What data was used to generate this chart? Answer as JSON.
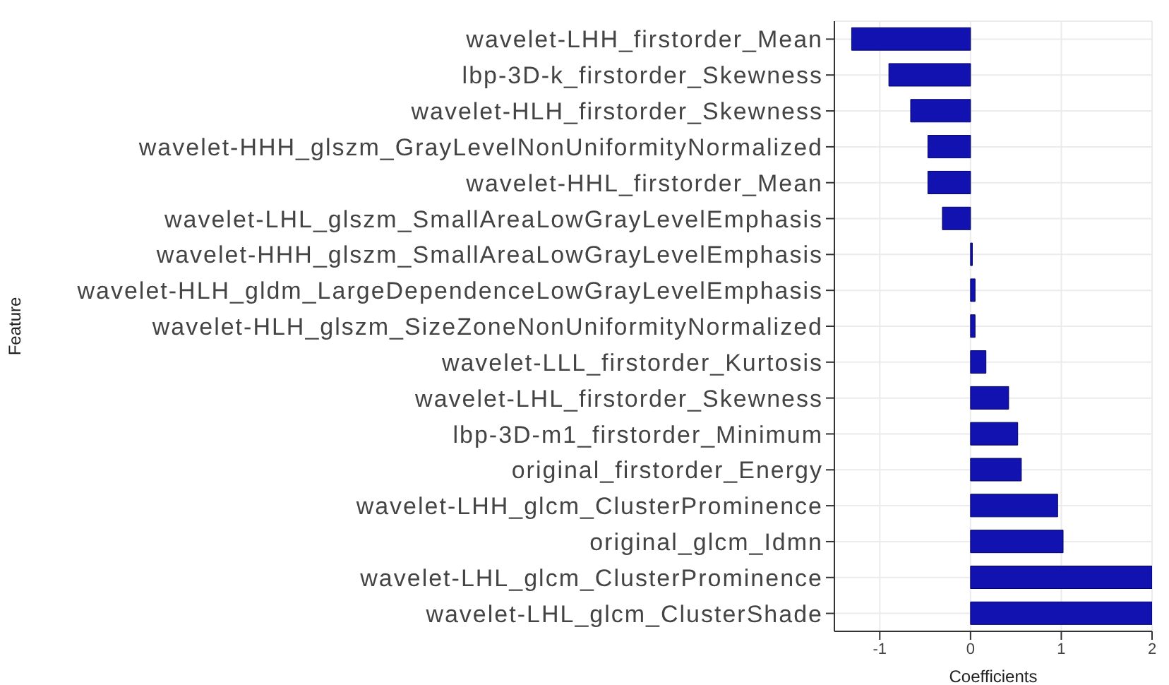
{
  "chart_data": {
    "type": "bar",
    "orientation": "horizontal",
    "xlabel": "Coefficients",
    "ylabel": "Feature",
    "categories": [
      "wavelet-LHH_firstorder_Mean",
      "lbp-3D-k_firstorder_Skewness",
      "wavelet-HLH_firstorder_Skewness",
      "wavelet-HHH_glszm_GrayLevelNonUniformityNormalized",
      "wavelet-HHL_firstorder_Mean",
      "wavelet-LHL_glszm_SmallAreaLowGrayLevelEmphasis",
      "wavelet-HHH_glszm_SmallAreaLowGrayLevelEmphasis",
      "wavelet-HLH_gldm_LargeDependenceLowGrayLevelEmphasis",
      "wavelet-HLH_glszm_SizeZoneNonUniformityNormalized",
      "wavelet-LLL_firstorder_Kurtosis",
      "wavelet-LHL_firstorder_Skewness",
      "lbp-3D-m1_firstorder_Minimum",
      "original_firstorder_Energy",
      "wavelet-LHH_glcm_ClusterProminence",
      "original_glcm_Idmn",
      "wavelet-LHL_glcm_ClusterProminence",
      "wavelet-LHL_glcm_ClusterShade"
    ],
    "values": [
      -1.31,
      -0.9,
      -0.66,
      -0.47,
      -0.47,
      -0.31,
      0.02,
      0.05,
      0.05,
      0.17,
      0.42,
      0.52,
      0.56,
      0.96,
      1.02,
      2.0,
      2.0
    ],
    "color": "#1212b0",
    "xlim": [
      -1.5,
      2.0
    ],
    "xticks": [
      -1,
      0,
      1,
      2
    ],
    "grid": true
  }
}
